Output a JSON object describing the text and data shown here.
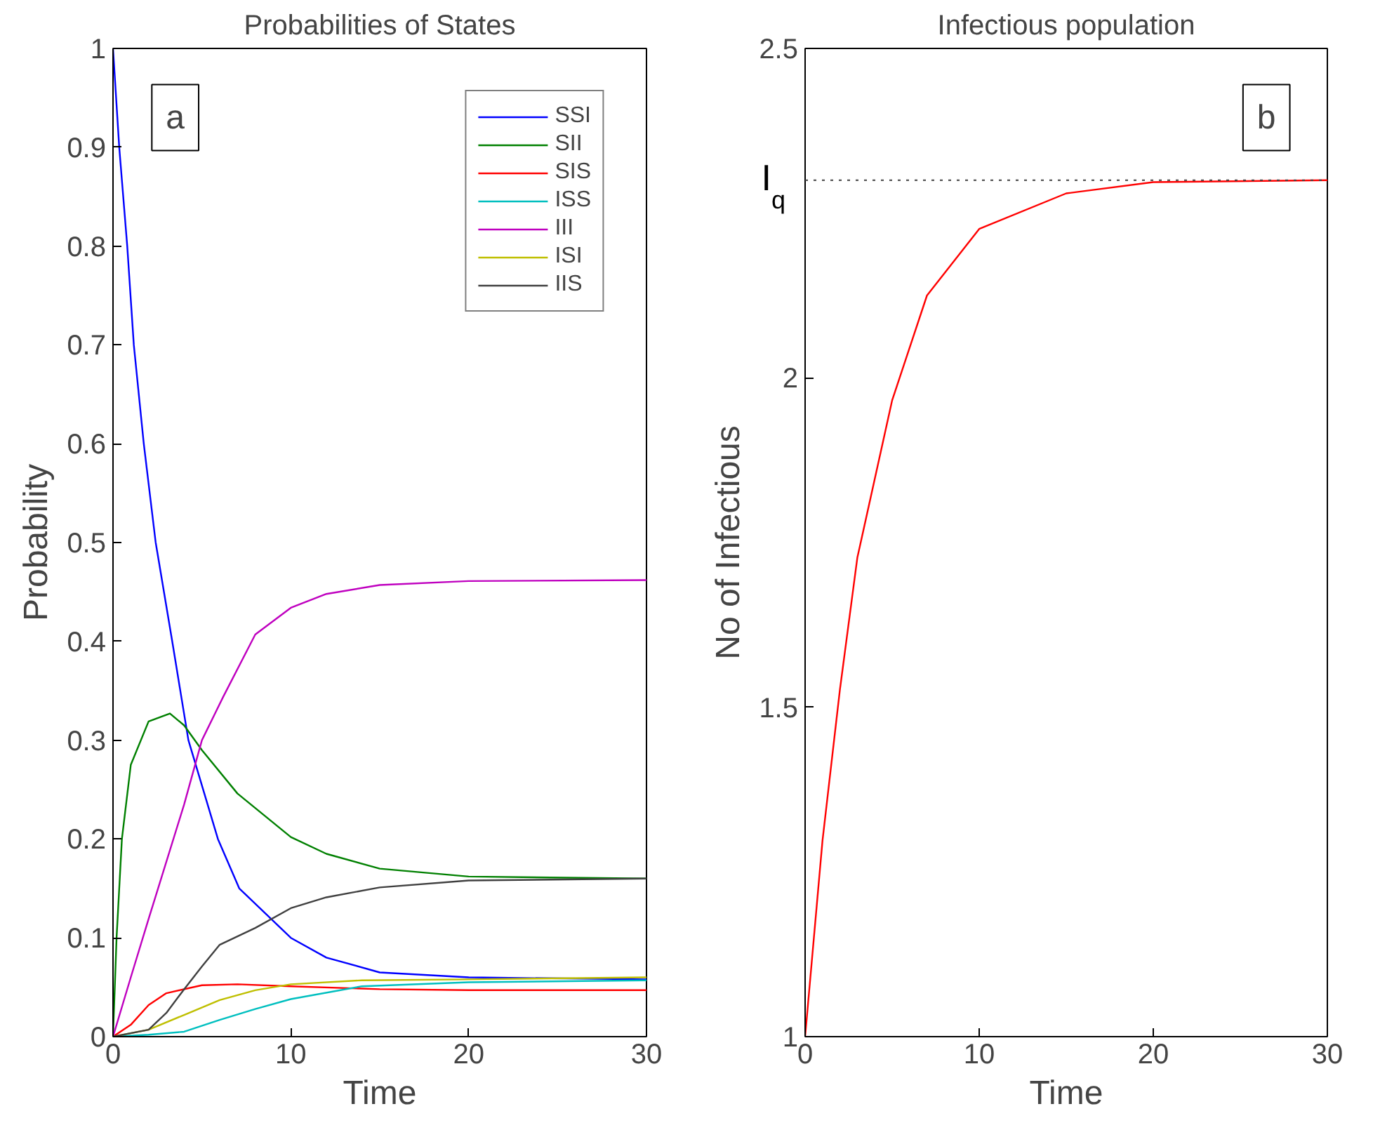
{
  "chart_data": [
    {
      "type": "line",
      "title": "Probabilities of States",
      "xlabel": "Time",
      "ylabel": "Probability",
      "xlim": [
        0,
        30
      ],
      "xticks": [
        0,
        10,
        20,
        30
      ],
      "ylim": [
        0,
        1
      ],
      "yticks": [
        0,
        0.1,
        0.2,
        0.3,
        0.4,
        0.5,
        0.6,
        0.7,
        0.8,
        0.9,
        1
      ],
      "grid": false,
      "legend": "top right",
      "annotations": [
        "a"
      ],
      "series": [
        {
          "name": "SSI",
          "color": "#0000ff",
          "x": [
            0,
            0.35,
            0.8,
            1.17,
            1.73,
            2.4,
            3.33,
            4.24,
            5.9,
            7.1,
            10,
            12,
            15,
            20,
            30
          ],
          "values": [
            1,
            0.9,
            0.8,
            0.7,
            0.6,
            0.5,
            0.4,
            0.3,
            0.2,
            0.15,
            0.1,
            0.08,
            0.065,
            0.06,
            0.058
          ]
        },
        {
          "name": "SII",
          "color": "#008000",
          "x": [
            0,
            0.2,
            0.5,
            1,
            2,
            3.2,
            4,
            5,
            7,
            10,
            12,
            15,
            20,
            30
          ],
          "values": [
            0,
            0.1,
            0.2,
            0.275,
            0.319,
            0.327,
            0.315,
            0.29,
            0.246,
            0.202,
            0.185,
            0.17,
            0.162,
            0.16
          ]
        },
        {
          "name": "SIS",
          "color": "#ff0000",
          "x": [
            0,
            1,
            2,
            3,
            5,
            7,
            10,
            15,
            20,
            30
          ],
          "values": [
            0,
            0.012,
            0.032,
            0.044,
            0.052,
            0.053,
            0.051,
            0.048,
            0.047,
            0.047
          ]
        },
        {
          "name": "ISS",
          "color": "#00bfbf",
          "x": [
            0,
            2,
            4,
            6,
            8,
            10,
            14,
            20,
            30
          ],
          "values": [
            0,
            0.002,
            0.005,
            0.017,
            0.028,
            0.038,
            0.051,
            0.055,
            0.057
          ]
        },
        {
          "name": "III",
          "color": "#bf00bf",
          "x": [
            0,
            1,
            2,
            4,
            5,
            6.2,
            8,
            10,
            12,
            15,
            20,
            30
          ],
          "values": [
            0,
            0.06,
            0.119,
            0.235,
            0.3,
            0.344,
            0.407,
            0.434,
            0.448,
            0.457,
            0.461,
            0.462
          ]
        },
        {
          "name": "ISI",
          "color": "#bfbf00",
          "x": [
            0,
            2,
            4,
            6,
            8,
            10,
            14,
            20,
            30
          ],
          "values": [
            0,
            0.007,
            0.022,
            0.037,
            0.047,
            0.053,
            0.057,
            0.058,
            0.06
          ]
        },
        {
          "name": "IIS",
          "color": "#404040",
          "x": [
            0,
            2,
            3,
            4,
            5,
            6,
            8,
            10,
            12,
            15,
            20,
            30
          ],
          "values": [
            0,
            0.007,
            0.024,
            0.048,
            0.071,
            0.093,
            0.11,
            0.13,
            0.141,
            0.151,
            0.158,
            0.16
          ]
        }
      ]
    },
    {
      "type": "line",
      "title": "Infectious population",
      "xlabel": "Time",
      "ylabel": "No of Infectious",
      "xlim": [
        0,
        30
      ],
      "xticks": [
        0,
        10,
        20,
        30
      ],
      "ylim": [
        1,
        2.5
      ],
      "yticks": [
        1,
        1.5,
        2,
        2.5
      ],
      "grid": false,
      "annotations": [
        "b"
      ],
      "ref_lines": [
        {
          "axis": "y",
          "value": 2.3,
          "label": "I$_{q}$",
          "color": "#404040",
          "line_style": "dotted"
        }
      ],
      "series": [
        {
          "color": "#ff0000",
          "x": [
            0,
            1,
            2,
            3,
            5,
            7,
            10,
            15,
            20,
            30
          ],
          "values": [
            1,
            1.298,
            1.527,
            1.727,
            1.966,
            2.125,
            2.226,
            2.28,
            2.297,
            2.3
          ]
        }
      ]
    }
  ]
}
